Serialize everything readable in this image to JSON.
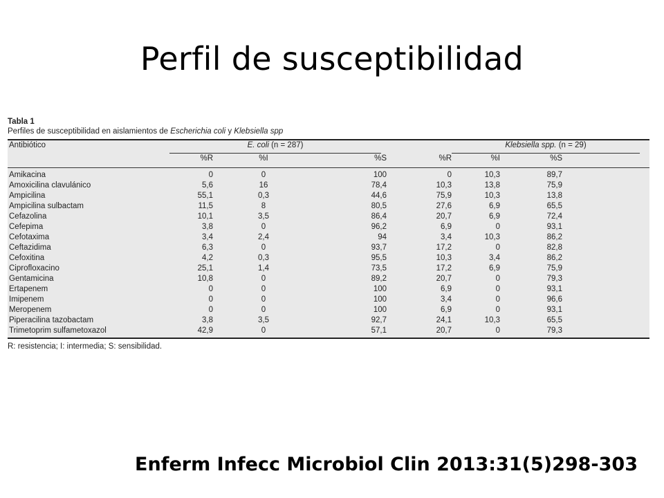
{
  "slide_title": "Perfil de susceptibilidad",
  "table": {
    "caption": "Tabla 1",
    "subtitle_prefix": "Perfiles de susceptibilidad en aislamientos de ",
    "subtitle_org1": "Escherichia coli",
    "subtitle_mid": " y ",
    "subtitle_org2": "Klebsiella spp",
    "col_antibiotic": "Antibiótico",
    "group1_name": "E. coli",
    "group1_n": " (n = 287)",
    "group2_name": "Klebsiella spp.",
    "group2_n": " (n = 29)",
    "sub_headers": [
      "%R",
      "%I",
      "%S",
      "%R",
      "%I",
      "%S"
    ],
    "rows": [
      {
        "name": "Amikacina",
        "v": [
          "0",
          "0",
          "100",
          "0",
          "10,3",
          "89,7"
        ]
      },
      {
        "name": "Amoxicilina clavulánico",
        "v": [
          "5,6",
          "16",
          "78,4",
          "10,3",
          "13,8",
          "75,9"
        ]
      },
      {
        "name": "Ampicilina",
        "v": [
          "55,1",
          "0,3",
          "44,6",
          "75,9",
          "10,3",
          "13,8"
        ]
      },
      {
        "name": "Ampicilina sulbactam",
        "v": [
          "11,5",
          "8",
          "80,5",
          "27,6",
          "6,9",
          "65,5"
        ]
      },
      {
        "name": "Cefazolina",
        "v": [
          "10,1",
          "3,5",
          "86,4",
          "20,7",
          "6,9",
          "72,4"
        ]
      },
      {
        "name": "Cefepima",
        "v": [
          "3,8",
          "0",
          "96,2",
          "6,9",
          "0",
          "93,1"
        ]
      },
      {
        "name": "Cefotaxima",
        "v": [
          "3,4",
          "2,4",
          "94",
          "3,4",
          "10,3",
          "86,2"
        ]
      },
      {
        "name": "Ceftazidima",
        "v": [
          "6,3",
          "0",
          "93,7",
          "17,2",
          "0",
          "82,8"
        ]
      },
      {
        "name": "Cefoxitina",
        "v": [
          "4,2",
          "0,3",
          "95,5",
          "10,3",
          "3,4",
          "86,2"
        ]
      },
      {
        "name": "Ciprofloxacino",
        "v": [
          "25,1",
          "1,4",
          "73,5",
          "17,2",
          "6,9",
          "75,9"
        ]
      },
      {
        "name": "Gentamicina",
        "v": [
          "10,8",
          "0",
          "89,2",
          "20,7",
          "0",
          "79,3"
        ]
      },
      {
        "name": "Ertapenem",
        "v": [
          "0",
          "0",
          "100",
          "6,9",
          "0",
          "93,1"
        ]
      },
      {
        "name": "Imipenem",
        "v": [
          "0",
          "0",
          "100",
          "3,4",
          "0",
          "96,6"
        ]
      },
      {
        "name": "Meropenem",
        "v": [
          "0",
          "0",
          "100",
          "6,9",
          "0",
          "93,1"
        ]
      },
      {
        "name": "Piperacilina tazobactam",
        "v": [
          "3,8",
          "3,5",
          "92,7",
          "24,1",
          "10,3",
          "65,5"
        ]
      },
      {
        "name": "Trimetoprim sulfametoxazol",
        "v": [
          "42,9",
          "0",
          "57,1",
          "20,7",
          "0",
          "79,3"
        ]
      }
    ],
    "footnote": "R: resistencia; I: intermedia; S: sensibilidad."
  },
  "reference": "Enferm Infecc Microbiol Clin 2013:31(5)298-303"
}
